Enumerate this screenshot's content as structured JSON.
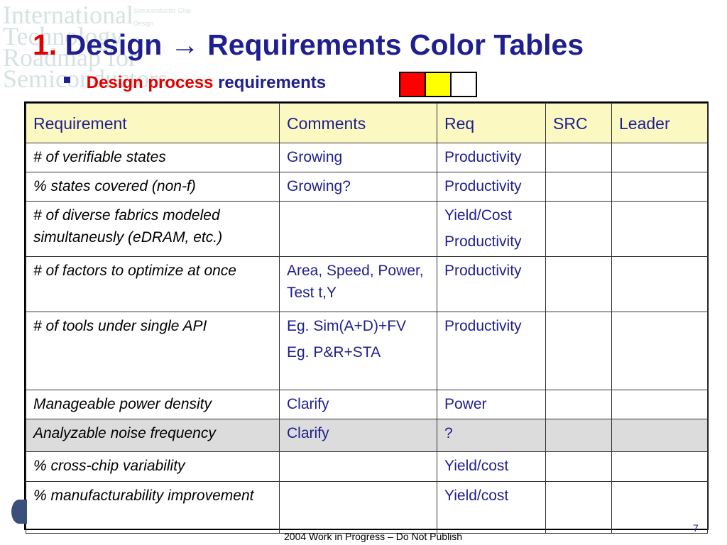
{
  "slide": {
    "title_number": "1.",
    "title_text": "Design → Requirements Color Tables",
    "subtitle_red": "Design process",
    "subtitle_blue": "requirements",
    "swatch_colors": [
      "#ff0000",
      "#ffff00",
      "#ffffff"
    ],
    "footer": "2004 Work in Progress – Do Not Publish",
    "page_number": "7",
    "logo_lines": [
      "International",
      "Technology",
      "Roadmap for",
      "Semiconductors"
    ],
    "logo_faint_lines": [
      "Semiconductor Chip",
      "Design"
    ]
  },
  "table": {
    "headers": [
      "Requirement",
      "Comments",
      "Req",
      "SRC",
      "Leader"
    ],
    "rows": [
      {
        "requirement": [
          "# of verifiable states"
        ],
        "comments": [
          "Growing"
        ],
        "req": [
          "Productivity"
        ],
        "src": "",
        "leader": "",
        "shaded": false
      },
      {
        "requirement": [
          "% states covered (non-f)"
        ],
        "comments": [
          "Growing?"
        ],
        "req": [
          "Productivity"
        ],
        "src": "",
        "leader": "",
        "shaded": false
      },
      {
        "requirement": [
          "# of diverse fabrics modeled simultaneusly (eDRAM, etc.)"
        ],
        "comments": [],
        "req": [
          "Yield/Cost",
          "Productivity"
        ],
        "src": "",
        "leader": "",
        "shaded": false
      },
      {
        "requirement": [
          "# of factors to optimize at once"
        ],
        "comments": [
          "Area, Speed, Power, Test t,Y"
        ],
        "req": [
          "Productivity"
        ],
        "src": "",
        "leader": "",
        "shaded": false
      },
      {
        "requirement": [
          "# of tools under single API"
        ],
        "comments": [
          "Eg. Sim(A+D)+FV",
          "Eg. P&R+STA"
        ],
        "req": [
          "Productivity"
        ],
        "src": "",
        "leader": "",
        "shaded": false
      },
      {
        "requirement": [
          "Manageable power density"
        ],
        "comments": [
          "Clarify"
        ],
        "req": [
          "Power"
        ],
        "src": "",
        "leader": "",
        "shaded": false
      },
      {
        "requirement": [
          "Analyzable noise frequency"
        ],
        "comments": [
          "Clarify"
        ],
        "req": [
          "?"
        ],
        "src": "",
        "leader": "",
        "shaded": true
      },
      {
        "requirement": [
          "% cross-chip variability"
        ],
        "comments": [],
        "req": [
          "Yield/cost"
        ],
        "src": "",
        "leader": "",
        "shaded": false
      },
      {
        "requirement": [
          "% manufacturability improvement"
        ],
        "comments": [],
        "req": [
          "Yield/cost"
        ],
        "src": "",
        "leader": "",
        "shaded": false
      }
    ]
  }
}
